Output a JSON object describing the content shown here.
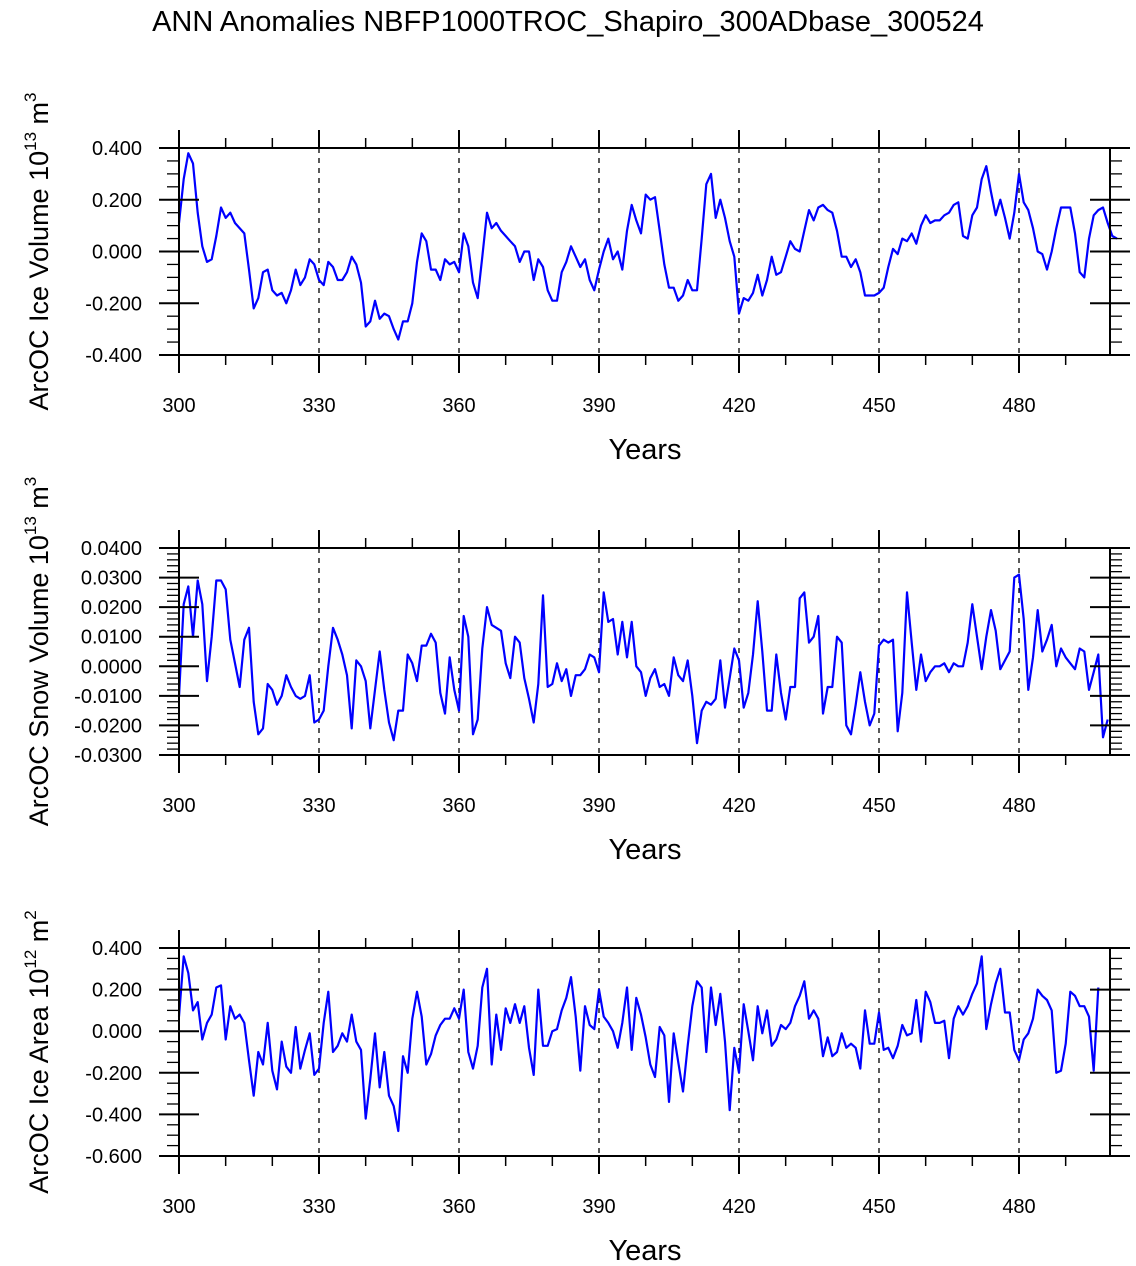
{
  "title": "ANN Anomalies NBFP1000TROC_Shapiro_300ADbase_300524",
  "line_color": "#0000ff",
  "chart_data": [
    {
      "type": "line",
      "title": "",
      "xlabel": "Years",
      "ylabel": "ArcOC Ice Volume 10",
      "ylabel_exp": "13",
      "ylabel_unit": " m",
      "ylabel_unit_exp": "3",
      "xlim": [
        300,
        499
      ],
      "ylim": [
        -0.4,
        0.4
      ],
      "xticks": [
        300,
        330,
        360,
        390,
        420,
        450,
        480
      ],
      "xtick_labels": [
        "300",
        "330",
        "360",
        "390",
        "420",
        "450",
        "480"
      ],
      "yticks": [
        -0.4,
        -0.2,
        0.0,
        0.2,
        0.4
      ],
      "ytick_labels": [
        "-0.400",
        "-0.200",
        "0.000",
        "0.200",
        "0.400"
      ],
      "grid": "dashed vertical at major x ticks",
      "series": [
        {
          "name": "ArcOC Ice Volume",
          "x_start": 300,
          "x_step": 1,
          "values": [
            0.11,
            0.28,
            0.38,
            0.34,
            0.15,
            0.02,
            -0.04,
            -0.03,
            0.06,
            0.17,
            0.13,
            0.15,
            0.11,
            0.09,
            0.07,
            -0.07,
            -0.22,
            -0.18,
            -0.08,
            -0.07,
            -0.15,
            -0.17,
            -0.16,
            -0.2,
            -0.15,
            -0.07,
            -0.13,
            -0.1,
            -0.03,
            -0.05,
            -0.11,
            -0.13,
            -0.04,
            -0.06,
            -0.11,
            -0.11,
            -0.08,
            -0.02,
            -0.05,
            -0.12,
            -0.29,
            -0.27,
            -0.19,
            -0.26,
            -0.24,
            -0.25,
            -0.3,
            -0.34,
            -0.27,
            -0.27,
            -0.2,
            -0.04,
            0.07,
            0.04,
            -0.07,
            -0.07,
            -0.11,
            -0.03,
            -0.05,
            -0.04,
            -0.08,
            0.07,
            0.02,
            -0.12,
            -0.18,
            -0.02,
            0.15,
            0.09,
            0.11,
            0.08,
            0.06,
            0.04,
            0.02,
            -0.04,
            0.0,
            0.0,
            -0.11,
            -0.03,
            -0.06,
            -0.15,
            -0.19,
            -0.19,
            -0.08,
            -0.04,
            0.02,
            -0.02,
            -0.06,
            -0.03,
            -0.11,
            -0.15,
            -0.07,
            0.0,
            0.05,
            -0.03,
            0.0,
            -0.07,
            0.08,
            0.18,
            0.12,
            0.07,
            0.22,
            0.2,
            0.21,
            0.08,
            -0.05,
            -0.14,
            -0.14,
            -0.19,
            -0.17,
            -0.11,
            -0.15,
            -0.15,
            0.05,
            0.26,
            0.3,
            0.13,
            0.2,
            0.13,
            0.04,
            -0.02,
            -0.24,
            -0.18,
            -0.19,
            -0.16,
            -0.09,
            -0.17,
            -0.11,
            -0.02,
            -0.09,
            -0.08,
            -0.02,
            0.04,
            0.01,
            0.0,
            0.08,
            0.16,
            0.12,
            0.17,
            0.18,
            0.16,
            0.15,
            0.08,
            -0.02,
            -0.02,
            -0.06,
            -0.03,
            -0.08,
            -0.17,
            -0.17,
            -0.17,
            -0.16,
            -0.14,
            -0.06,
            0.01,
            -0.01,
            0.05,
            0.04,
            0.07,
            0.03,
            0.1,
            0.14,
            0.11,
            0.12,
            0.12,
            0.14,
            0.15,
            0.18,
            0.19,
            0.06,
            0.05,
            0.14,
            0.17,
            0.28,
            0.33,
            0.23,
            0.14,
            0.2,
            0.13,
            0.05,
            0.15,
            0.3,
            0.19,
            0.16,
            0.09,
            0.0,
            -0.01,
            -0.07,
            0.0,
            0.09,
            0.17,
            0.17,
            0.17,
            0.07,
            -0.08,
            -0.1,
            0.05,
            0.14,
            0.16,
            0.17,
            0.11,
            0.06,
            0.05
          ]
        }
      ]
    },
    {
      "type": "line",
      "title": "",
      "xlabel": "Years",
      "ylabel": "ArcOC Snow Volume 10",
      "ylabel_exp": "13",
      "ylabel_unit": " m",
      "ylabel_unit_exp": "3",
      "xlim": [
        300,
        499
      ],
      "ylim": [
        -0.03,
        0.04
      ],
      "xticks": [
        300,
        330,
        360,
        390,
        420,
        450,
        480
      ],
      "xtick_labels": [
        "300",
        "330",
        "360",
        "390",
        "420",
        "450",
        "480"
      ],
      "yticks": [
        -0.03,
        -0.02,
        -0.01,
        0.0,
        0.01,
        0.02,
        0.03,
        0.04
      ],
      "ytick_labels": [
        "-0.0300",
        "-0.0200",
        "-0.0100",
        "0.0000",
        "0.0100",
        "0.0200",
        "0.0300",
        "0.0400"
      ],
      "grid": "dashed vertical at major x ticks",
      "series": [
        {
          "name": "ArcOC Snow Volume",
          "x_start": 300,
          "x_step": 1,
          "values": [
            -0.01,
            0.021,
            0.027,
            0.01,
            0.029,
            0.021,
            -0.005,
            0.01,
            0.029,
            0.029,
            0.026,
            0.009,
            0.001,
            -0.007,
            0.009,
            0.013,
            -0.012,
            -0.023,
            -0.021,
            -0.006,
            -0.008,
            -0.013,
            -0.01,
            -0.003,
            -0.007,
            -0.01,
            -0.011,
            -0.01,
            -0.003,
            -0.019,
            -0.018,
            -0.015,
            0.0,
            0.013,
            0.009,
            0.004,
            -0.003,
            -0.021,
            0.002,
            0.0,
            -0.005,
            -0.021,
            -0.008,
            0.005,
            -0.008,
            -0.019,
            -0.025,
            -0.015,
            -0.015,
            0.004,
            0.001,
            -0.005,
            0.007,
            0.007,
            0.011,
            0.008,
            -0.009,
            -0.016,
            0.003,
            -0.008,
            -0.015,
            0.017,
            0.01,
            -0.023,
            -0.018,
            0.006,
            0.02,
            0.014,
            0.013,
            0.012,
            0.001,
            -0.004,
            0.01,
            0.008,
            -0.004,
            -0.011,
            -0.019,
            -0.006,
            0.024,
            -0.007,
            -0.006,
            0.001,
            -0.005,
            -0.001,
            -0.01,
            -0.003,
            -0.003,
            -0.001,
            0.004,
            0.003,
            -0.002,
            0.025,
            0.015,
            0.016,
            0.004,
            0.015,
            0.003,
            0.015,
            0.0,
            -0.002,
            -0.01,
            -0.004,
            -0.001,
            -0.007,
            -0.006,
            -0.01,
            0.003,
            -0.003,
            -0.005,
            0.002,
            -0.01,
            -0.026,
            -0.015,
            -0.012,
            -0.013,
            -0.011,
            0.002,
            -0.014,
            -0.004,
            0.006,
            0.002,
            -0.014,
            -0.009,
            0.004,
            0.022,
            0.005,
            -0.015,
            -0.015,
            0.004,
            -0.009,
            -0.018,
            -0.007,
            -0.007,
            0.023,
            0.025,
            0.008,
            0.01,
            0.017,
            -0.016,
            -0.007,
            -0.007,
            0.01,
            0.008,
            -0.02,
            -0.023,
            -0.013,
            -0.002,
            -0.012,
            -0.02,
            -0.016,
            0.007,
            0.009,
            0.008,
            0.009,
            -0.022,
            -0.009,
            0.025,
            0.008,
            -0.008,
            0.004,
            -0.005,
            -0.002,
            0.0,
            0.0,
            0.001,
            -0.002,
            0.001,
            0.0,
            0.0,
            0.008,
            0.021,
            0.01,
            -0.001,
            0.01,
            0.019,
            0.012,
            -0.001,
            0.002,
            0.005,
            0.03,
            0.031,
            0.016,
            -0.008,
            0.003,
            0.019,
            0.005,
            0.009,
            0.014,
            0.0,
            0.006,
            0.003,
            0.001,
            -0.001,
            0.006,
            0.005,
            -0.008,
            -0.002,
            0.004,
            -0.024,
            -0.018
          ]
        }
      ]
    },
    {
      "type": "line",
      "title": "",
      "xlabel": "Years",
      "ylabel": "ArcOC Ice Area 10",
      "ylabel_exp": "12",
      "ylabel_unit": " m",
      "ylabel_unit_exp": "2",
      "xlim": [
        300,
        499
      ],
      "ylim": [
        -0.6,
        0.4
      ],
      "xticks": [
        300,
        330,
        360,
        390,
        420,
        450,
        480
      ],
      "xtick_labels": [
        "300",
        "330",
        "360",
        "390",
        "420",
        "450",
        "480"
      ],
      "yticks": [
        -0.6,
        -0.4,
        -0.2,
        0.0,
        0.2,
        0.4
      ],
      "ytick_labels": [
        "-0.600",
        "-0.400",
        "-0.200",
        "0.000",
        "0.200",
        "0.400"
      ],
      "grid": "dashed vertical at major x ticks",
      "series": [
        {
          "name": "ArcOC Ice Area",
          "x_start": 300,
          "x_step": 1,
          "values": [
            0.07,
            0.36,
            0.28,
            0.1,
            0.14,
            -0.04,
            0.04,
            0.08,
            0.21,
            0.22,
            -0.04,
            0.12,
            0.06,
            0.08,
            0.04,
            -0.14,
            -0.31,
            -0.1,
            -0.16,
            0.04,
            -0.19,
            -0.28,
            -0.05,
            -0.17,
            -0.2,
            0.02,
            -0.18,
            -0.09,
            -0.01,
            -0.21,
            -0.18,
            0.04,
            0.19,
            -0.1,
            -0.07,
            -0.01,
            -0.05,
            0.08,
            -0.05,
            -0.09,
            -0.42,
            -0.23,
            -0.01,
            -0.27,
            -0.1,
            -0.31,
            -0.36,
            -0.48,
            -0.12,
            -0.2,
            0.06,
            0.19,
            0.07,
            -0.16,
            -0.11,
            -0.02,
            0.03,
            0.06,
            0.06,
            0.11,
            0.06,
            0.2,
            -0.1,
            -0.18,
            -0.07,
            0.21,
            0.3,
            -0.16,
            0.08,
            -0.09,
            0.11,
            0.04,
            0.13,
            0.04,
            0.12,
            -0.08,
            -0.21,
            0.2,
            -0.07,
            -0.07,
            0.0,
            0.01,
            0.1,
            0.16,
            0.26,
            0.07,
            -0.19,
            0.12,
            0.03,
            0.01,
            0.2,
            0.07,
            0.04,
            0.0,
            -0.08,
            0.04,
            0.21,
            -0.09,
            0.16,
            0.08,
            -0.03,
            -0.16,
            -0.22,
            0.02,
            -0.02,
            -0.34,
            -0.01,
            -0.15,
            -0.29,
            -0.07,
            0.12,
            0.24,
            0.21,
            -0.1,
            0.21,
            0.03,
            0.18,
            -0.05,
            -0.38,
            -0.08,
            -0.2,
            0.13,
            0.0,
            -0.14,
            0.12,
            -0.01,
            0.1,
            -0.07,
            -0.04,
            0.03,
            0.01,
            0.04,
            0.12,
            0.17,
            0.24,
            0.06,
            0.1,
            0.06,
            -0.12,
            -0.03,
            -0.12,
            -0.1,
            -0.01,
            -0.08,
            -0.06,
            -0.08,
            -0.18,
            0.1,
            -0.06,
            -0.06,
            0.09,
            -0.09,
            -0.08,
            -0.13,
            -0.07,
            0.03,
            -0.02,
            -0.01,
            0.15,
            -0.05,
            0.19,
            0.14,
            0.04,
            0.04,
            0.05,
            -0.13,
            0.06,
            0.12,
            0.08,
            0.12,
            0.18,
            0.23,
            0.36,
            0.01,
            0.13,
            0.23,
            0.3,
            0.09,
            0.09,
            -0.09,
            -0.14,
            -0.04,
            -0.01,
            0.06,
            0.2,
            0.17,
            0.15,
            0.1,
            -0.2,
            -0.19,
            -0.06,
            0.19,
            0.17,
            0.12,
            0.12,
            0.07,
            -0.19,
            0.21
          ]
        }
      ]
    }
  ]
}
